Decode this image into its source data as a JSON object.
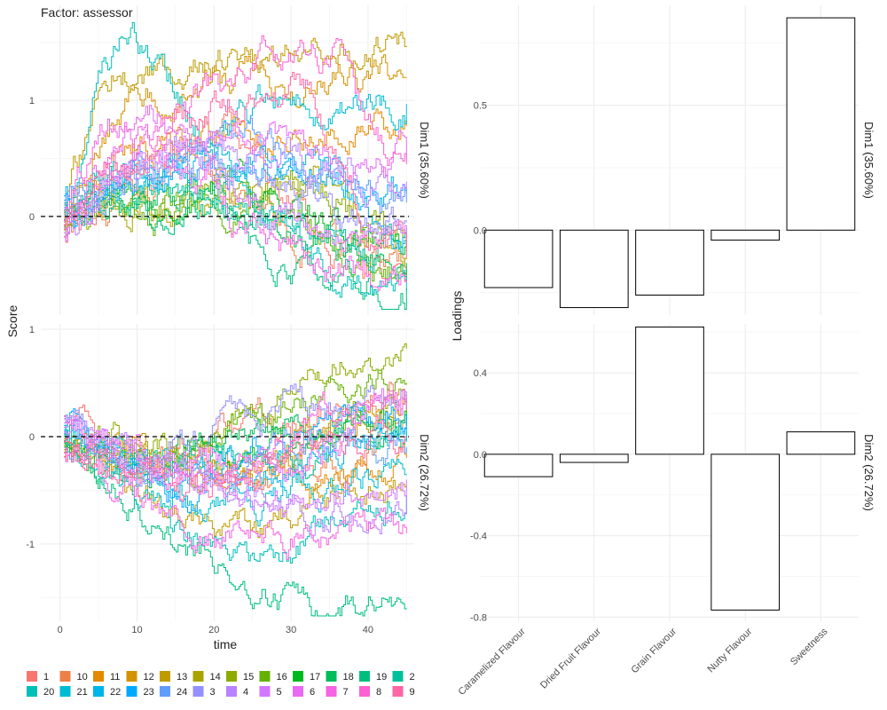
{
  "left_panel": {
    "title": "Factor: assessor",
    "ylabel": "Score",
    "xlabel": "time",
    "x_ticks": [
      0,
      10,
      20,
      30,
      40
    ],
    "xlim": [
      -2.5,
      46
    ],
    "facets": [
      {
        "strip": "Dim1 (35.60%)",
        "ylim": [
          -0.85,
          1.82
        ],
        "y_ticks": [
          0,
          0,
          1
        ],
        "y_tick_labels": [
          "",
          "0",
          "1"
        ]
      },
      {
        "strip": "Dim2 (26.72%)",
        "ylim": [
          -1.72,
          1.05
        ],
        "y_ticks": [
          -1,
          0,
          1
        ],
        "y_tick_labels": [
          "-1",
          "0",
          "1"
        ]
      }
    ]
  },
  "legend": {
    "items": [
      {
        "label": "1",
        "color": "#F8766D"
      },
      {
        "label": "10",
        "color": "#EF7F48"
      },
      {
        "label": "11",
        "color": "#E38900"
      },
      {
        "label": "12",
        "color": "#D39200"
      },
      {
        "label": "13",
        "color": "#C09B00"
      },
      {
        "label": "14",
        "color": "#A9A400"
      },
      {
        "label": "15",
        "color": "#8DAB00"
      },
      {
        "label": "16",
        "color": "#64B200"
      },
      {
        "label": "17",
        "color": "#00B81F"
      },
      {
        "label": "18",
        "color": "#00BC59"
      },
      {
        "label": "19",
        "color": "#00BF7D"
      },
      {
        "label": "2",
        "color": "#00C19C"
      },
      {
        "label": "20",
        "color": "#00BFB8"
      },
      {
        "label": "21",
        "color": "#00BCD1"
      },
      {
        "label": "22",
        "color": "#00B5E7"
      },
      {
        "label": "23",
        "color": "#00A9FF"
      },
      {
        "label": "24",
        "color": "#619CFF"
      },
      {
        "label": "3",
        "color": "#9590FF"
      },
      {
        "label": "4",
        "color": "#B983FF"
      },
      {
        "label": "5",
        "color": "#D376FF"
      },
      {
        "label": "6",
        "color": "#E76BF3"
      },
      {
        "label": "7",
        "color": "#F564E3"
      },
      {
        "label": "8",
        "color": "#FD61D1"
      },
      {
        "label": "9",
        "color": "#FF67A4"
      }
    ]
  },
  "chart_data": [
    {
      "type": "line",
      "facet": "Dim1 (35.60%)",
      "xlabel": "time",
      "ylabel": "Score",
      "x_range": [
        0.5,
        45
      ],
      "reference_line": 0,
      "series_names": [
        "1",
        "10",
        "11",
        "12",
        "13",
        "14",
        "15",
        "16",
        "17",
        "18",
        "19",
        "2",
        "20",
        "21",
        "22",
        "23",
        "24",
        "3",
        "4",
        "5",
        "6",
        "7",
        "8",
        "9"
      ],
      "series_endpoints": [
        -0.55,
        -0.5,
        0.78,
        1.2,
        1.47,
        -0.35,
        -0.15,
        -0.45,
        -0.2,
        -0.4,
        -0.62,
        -0.3,
        -0.65,
        0.97,
        -0.1,
        0.2,
        0.12,
        -0.05,
        0.3,
        -0.25,
        0.5,
        -0.55,
        0.45,
        -0.35
      ],
      "series_peaks": [
        0.9,
        0.6,
        0.8,
        1.25,
        1.48,
        0.4,
        0.3,
        0.2,
        0.3,
        0.25,
        0.2,
        0.35,
        1.8,
        1.0,
        0.6,
        0.5,
        0.7,
        0.6,
        0.8,
        0.7,
        1.0,
        1.0,
        1.65,
        1.4
      ]
    },
    {
      "type": "line",
      "facet": "Dim2 (26.72%)",
      "xlabel": "time",
      "ylabel": "Score",
      "x_range": [
        0.5,
        45
      ],
      "reference_line": 0,
      "series_names": [
        "1",
        "10",
        "11",
        "12",
        "13",
        "14",
        "15",
        "16",
        "17",
        "18",
        "19",
        "2",
        "20",
        "21",
        "22",
        "23",
        "24",
        "3",
        "4",
        "5",
        "6",
        "7",
        "8",
        "9"
      ],
      "series_endpoints": [
        0.3,
        0.1,
        -0.2,
        0.2,
        -0.45,
        0.25,
        0.82,
        0.5,
        0.15,
        0.05,
        -1.6,
        0.1,
        -0.55,
        -0.35,
        -0.05,
        0.2,
        -0.1,
        0.35,
        -0.55,
        -0.4,
        0.25,
        -0.9,
        0.35,
        0.0
      ],
      "series_lows": [
        -0.3,
        -0.4,
        -0.5,
        -0.3,
        -0.95,
        -0.4,
        -0.2,
        -0.3,
        -0.3,
        -0.3,
        -1.65,
        -0.4,
        -1.35,
        -0.7,
        -0.5,
        -0.6,
        -0.5,
        -0.3,
        -0.75,
        -0.65,
        -0.5,
        -1.0,
        -0.4,
        -0.5
      ]
    },
    {
      "type": "bar",
      "facet": "Dim1 (35.60%)",
      "ylabel": "Loadings",
      "categories": [
        "Caramelized Flavour",
        "Dried Fruit Flavour",
        "Grain Flavour",
        "Nutty Flavour",
        "Sweetness"
      ],
      "values": [
        -0.23,
        -0.31,
        -0.26,
        -0.04,
        0.85
      ],
      "ylim": [
        -0.34,
        0.9
      ],
      "y_ticks": [
        0.0,
        0.5
      ],
      "y_tick_labels": [
        "0.0",
        "0.5"
      ]
    },
    {
      "type": "bar",
      "facet": "Dim2 (26.72%)",
      "ylabel": "Loadings",
      "categories": [
        "Caramelized Flavour",
        "Dried Fruit Flavour",
        "Grain Flavour",
        "Nutty Flavour",
        "Sweetness"
      ],
      "values": [
        -0.11,
        -0.04,
        0.625,
        -0.765,
        0.11
      ],
      "ylim": [
        -0.82,
        0.64
      ],
      "y_ticks": [
        -0.8,
        -0.4,
        0.0,
        0.4
      ],
      "y_tick_labels": [
        "-0.8",
        "-0.4",
        "0.0",
        "0.4"
      ]
    }
  ]
}
